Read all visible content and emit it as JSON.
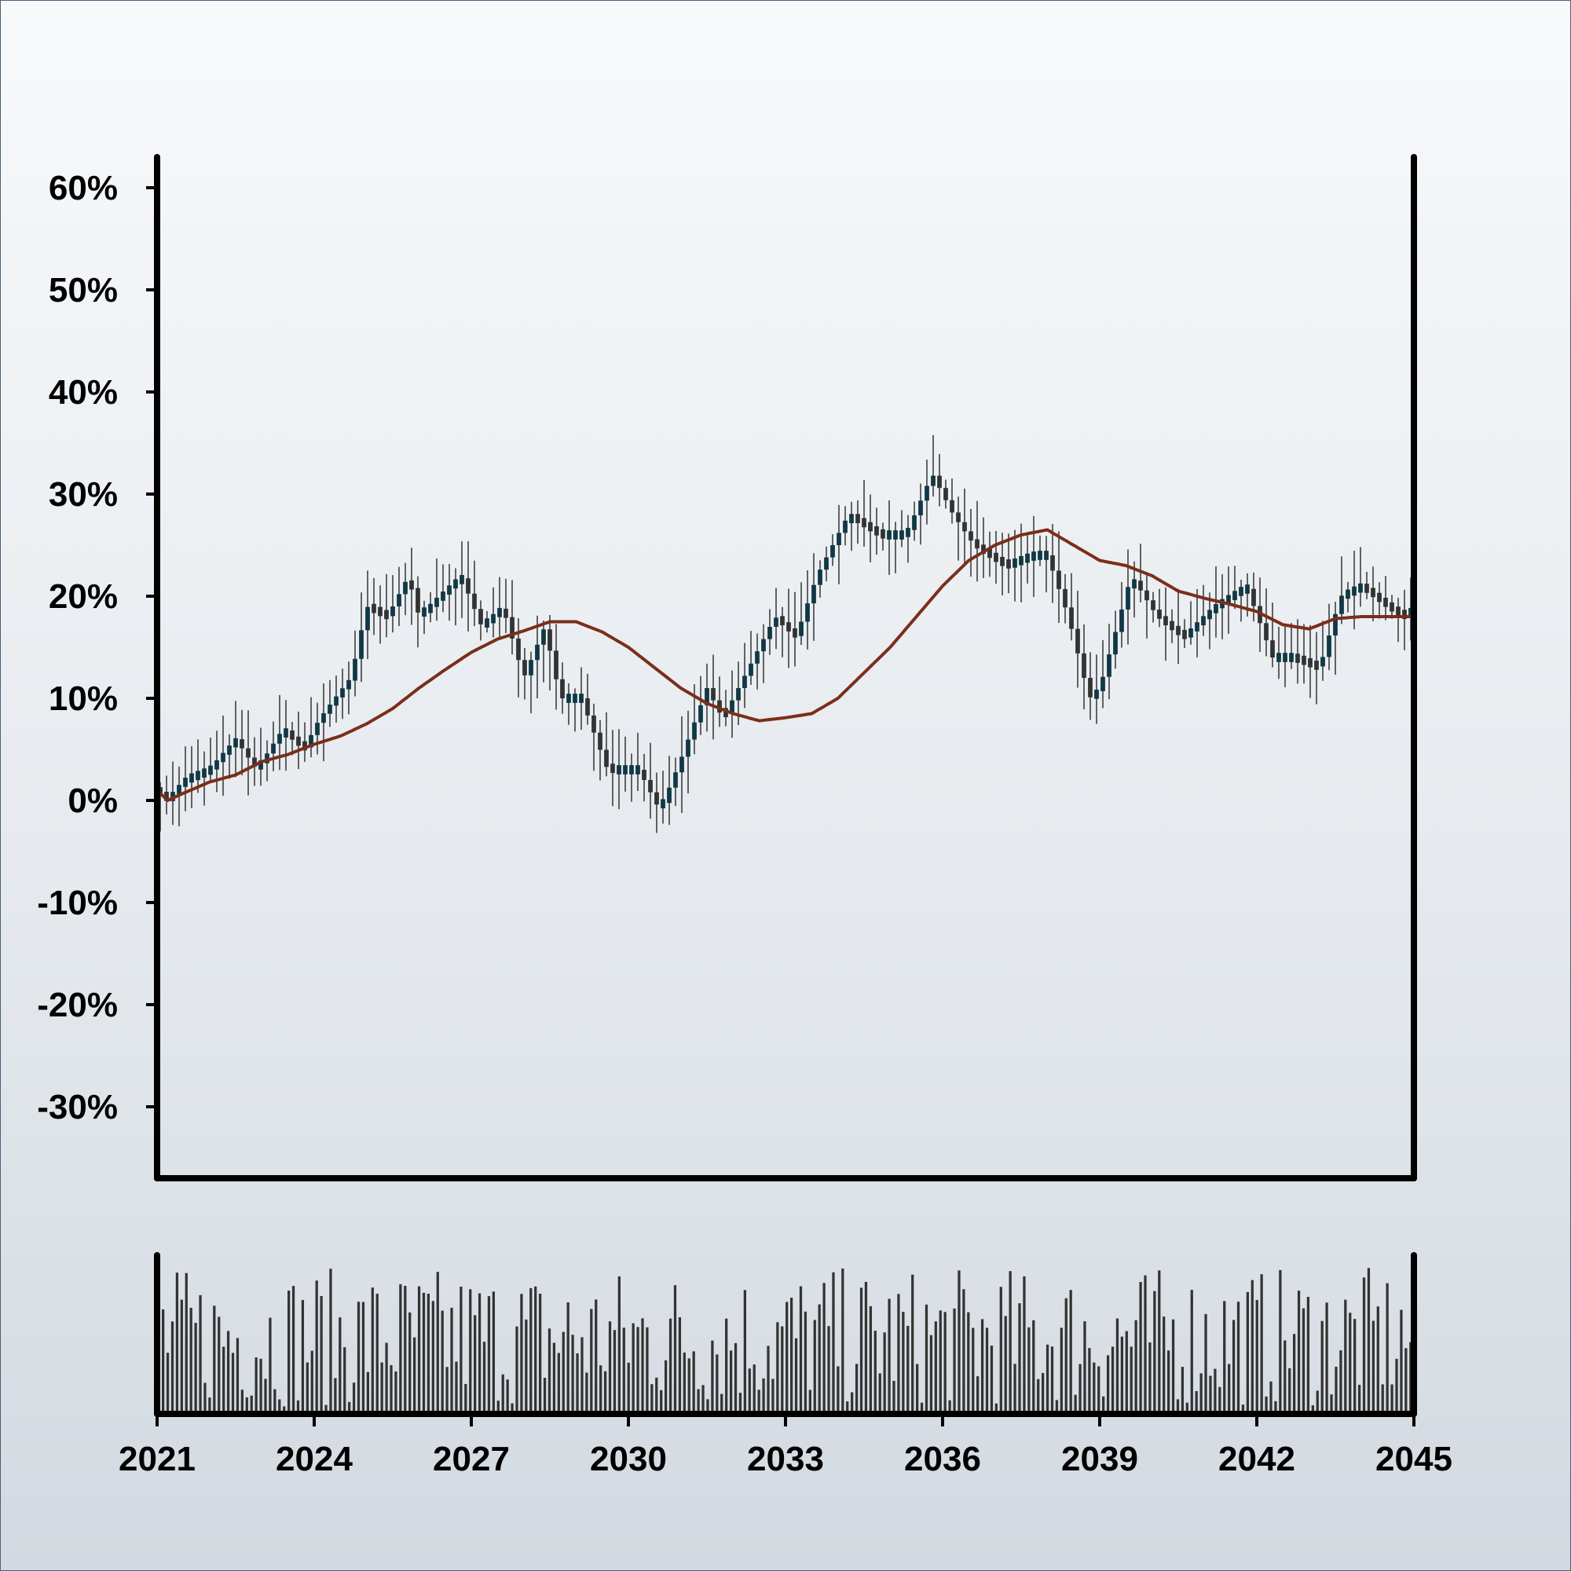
{
  "chart_data": {
    "type": "candlestick",
    "title": "",
    "xlabel": "",
    "ylabel": "",
    "x_range": [
      2021,
      2045
    ],
    "ylim": [
      -37,
      63
    ],
    "y_ticks": [
      60,
      50,
      40,
      30,
      20,
      10,
      0,
      -10,
      -20,
      -30
    ],
    "y_tick_labels": [
      "60%",
      "50%",
      "40%",
      "30%",
      "20%",
      "10%",
      "0%",
      "-10%",
      "-20%",
      "-30%"
    ],
    "x_ticks": [
      2021,
      2024,
      2027,
      2030,
      2033,
      2036,
      2039,
      2042,
      2045
    ],
    "x_tick_labels": [
      "2021",
      "2024",
      "2027",
      "2030",
      "2033",
      "2036",
      "2039",
      "2042",
      "2045"
    ],
    "price_anchors": [
      [
        2021.0,
        1
      ],
      [
        2021.2,
        0
      ],
      [
        2021.5,
        2
      ],
      [
        2022.0,
        3
      ],
      [
        2022.5,
        6
      ],
      [
        2022.9,
        3
      ],
      [
        2023.4,
        7
      ],
      [
        2023.8,
        5
      ],
      [
        2024.1,
        8
      ],
      [
        2024.7,
        12
      ],
      [
        2025.0,
        19
      ],
      [
        2025.4,
        18
      ],
      [
        2025.8,
        22
      ],
      [
        2026.0,
        18
      ],
      [
        2026.4,
        20
      ],
      [
        2026.8,
        22
      ],
      [
        2027.2,
        17
      ],
      [
        2027.6,
        19
      ],
      [
        2028.0,
        12
      ],
      [
        2028.4,
        17
      ],
      [
        2028.7,
        10
      ],
      [
        2029.1,
        10
      ],
      [
        2029.6,
        3
      ],
      [
        2030.2,
        3
      ],
      [
        2030.6,
        -1
      ],
      [
        2031.0,
        4
      ],
      [
        2031.5,
        11
      ],
      [
        2031.8,
        8
      ],
      [
        2032.2,
        12
      ],
      [
        2032.8,
        18
      ],
      [
        2033.2,
        16
      ],
      [
        2033.6,
        22
      ],
      [
        2034.2,
        28
      ],
      [
        2034.8,
        26
      ],
      [
        2035.3,
        26
      ],
      [
        2035.8,
        32
      ],
      [
        2036.2,
        28
      ],
      [
        2036.6,
        25
      ],
      [
        2037.2,
        23
      ],
      [
        2037.7,
        24
      ],
      [
        2038.0,
        24
      ],
      [
        2038.4,
        18
      ],
      [
        2038.8,
        10
      ],
      [
        2039.0,
        11
      ],
      [
        2039.6,
        22
      ],
      [
        2040.1,
        18
      ],
      [
        2040.6,
        16
      ],
      [
        2041.2,
        19
      ],
      [
        2041.8,
        21
      ],
      [
        2042.3,
        14
      ],
      [
        2042.7,
        14
      ],
      [
        2043.2,
        13
      ],
      [
        2043.6,
        20
      ],
      [
        2044.0,
        21
      ],
      [
        2044.5,
        19
      ],
      [
        2044.8,
        18
      ],
      [
        2045.0,
        19
      ]
    ],
    "ma_anchors": [
      [
        2021.0,
        1
      ],
      [
        2021.2,
        0
      ],
      [
        2021.5,
        0.7
      ],
      [
        2022.0,
        1.8
      ],
      [
        2022.5,
        2.5
      ],
      [
        2023.0,
        3.8
      ],
      [
        2023.5,
        4.5
      ],
      [
        2024.0,
        5.5
      ],
      [
        2024.5,
        6.3
      ],
      [
        2025.0,
        7.5
      ],
      [
        2025.5,
        9
      ],
      [
        2026.0,
        11
      ],
      [
        2026.5,
        12.8
      ],
      [
        2027.0,
        14.5
      ],
      [
        2027.5,
        15.8
      ],
      [
        2028.0,
        16.6
      ],
      [
        2028.5,
        17.5
      ],
      [
        2029.0,
        17.5
      ],
      [
        2029.5,
        16.5
      ],
      [
        2030.0,
        15
      ],
      [
        2030.5,
        13
      ],
      [
        2031.0,
        11
      ],
      [
        2031.5,
        9.5
      ],
      [
        2032.0,
        8.5
      ],
      [
        2032.5,
        7.8
      ],
      [
        2033.0,
        8.1
      ],
      [
        2033.5,
        8.5
      ],
      [
        2034.0,
        10
      ],
      [
        2034.5,
        12.5
      ],
      [
        2035.0,
        15
      ],
      [
        2035.5,
        18
      ],
      [
        2036.0,
        21
      ],
      [
        2036.5,
        23.5
      ],
      [
        2037.0,
        25
      ],
      [
        2037.5,
        26
      ],
      [
        2038.0,
        26.5
      ],
      [
        2038.5,
        25
      ],
      [
        2039.0,
        23.5
      ],
      [
        2039.5,
        23
      ],
      [
        2040.0,
        22
      ],
      [
        2040.5,
        20.5
      ],
      [
        2041.0,
        19.8
      ],
      [
        2041.5,
        19.2
      ],
      [
        2042.0,
        18.5
      ],
      [
        2042.5,
        17.2
      ],
      [
        2043.0,
        16.8
      ],
      [
        2043.5,
        17.8
      ],
      [
        2044.0,
        18
      ],
      [
        2044.5,
        18
      ],
      [
        2045.0,
        18
      ]
    ],
    "candle_count": 200,
    "ma_color": "#7a2e1a",
    "candle_color": "#333333",
    "candle_alt_color": "#103845",
    "volume_color": "#333333"
  }
}
